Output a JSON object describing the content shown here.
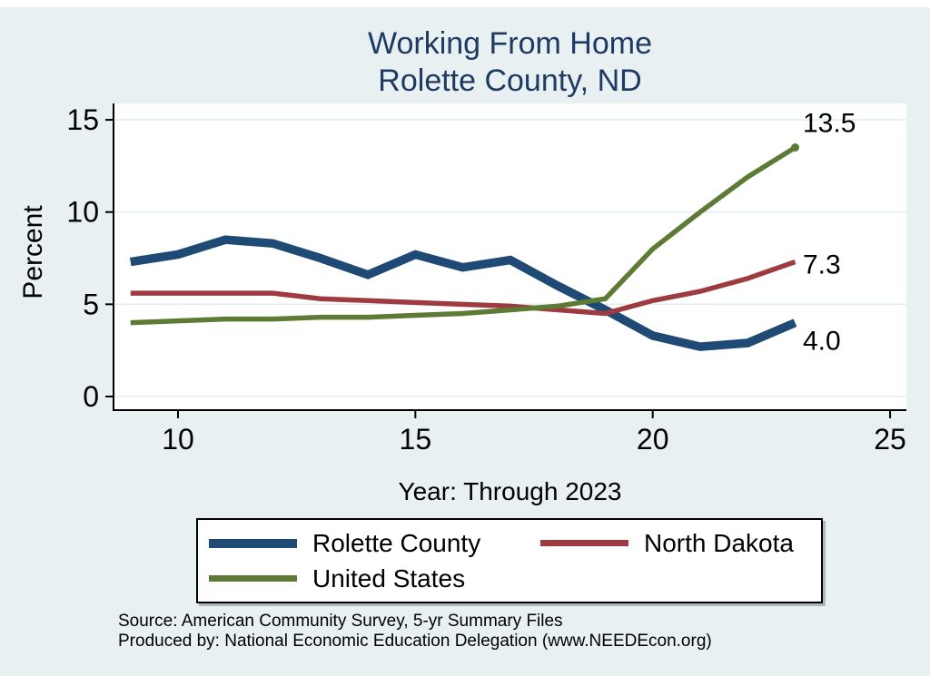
{
  "title": {
    "line1": "Working From Home",
    "line2": "Rolette County, ND"
  },
  "chart_data": {
    "type": "line",
    "title": "Working From Home — Rolette County, ND",
    "xlabel": "Year: Through 2023",
    "ylabel": "Percent",
    "x": [
      9,
      10,
      11,
      12,
      13,
      14,
      15,
      16,
      17,
      18,
      19,
      20,
      21,
      22,
      23
    ],
    "x_ticks": [
      10,
      15,
      20,
      25
    ],
    "y_ticks": [
      0,
      5,
      10,
      15
    ],
    "xlim": [
      8.65,
      25.35
    ],
    "ylim": [
      0,
      15.7
    ],
    "grid": "horizontal",
    "grid_color": "#e3edf0",
    "plot_bg": "#ffffff",
    "page_bg": "#e9f0f2",
    "axis_color": "#000000",
    "legend_position": "bottom",
    "series": [
      {
        "name": "Rolette County",
        "color": "#1f4a75",
        "line_width": 9.5,
        "end_label": "4.0",
        "end_dot": false,
        "values": [
          7.3,
          7.7,
          8.5,
          8.3,
          7.5,
          6.6,
          7.7,
          7.0,
          7.4,
          6.0,
          4.7,
          3.3,
          2.7,
          2.9,
          4.0
        ]
      },
      {
        "name": "North Dakota",
        "color": "#9e3b40",
        "line_width": 5.5,
        "end_label": "7.3",
        "end_dot": false,
        "values": [
          5.6,
          5.6,
          5.6,
          5.6,
          5.3,
          5.2,
          5.1,
          5.0,
          4.9,
          4.7,
          4.5,
          5.2,
          5.7,
          6.4,
          7.3
        ]
      },
      {
        "name": "United States",
        "color": "#5d7b35",
        "line_width": 5.5,
        "end_label": "13.5",
        "end_dot": true,
        "values": [
          4.0,
          4.1,
          4.2,
          4.2,
          4.3,
          4.3,
          4.4,
          4.5,
          4.7,
          4.9,
          5.3,
          8.0,
          10.0,
          11.9,
          13.5
        ]
      }
    ]
  },
  "footer": {
    "line1": "Source: American Community Survey, 5-yr Summary Files",
    "line2": "Produced by: National Economic Education Delegation (www.NEEDEcon.org)"
  }
}
